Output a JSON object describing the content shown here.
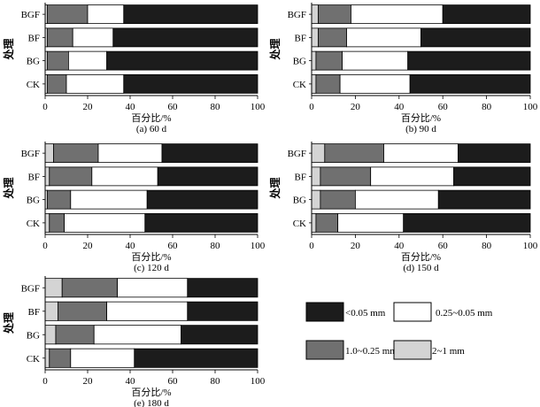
{
  "figure": {
    "ylabel": "处理",
    "xlabel": "百分比/%",
    "xlim": [
      0,
      100
    ],
    "xticks": [
      0,
      20,
      40,
      60,
      80,
      100
    ],
    "categories": [
      "BGF",
      "BF",
      "BG",
      "CK"
    ]
  },
  "legend": {
    "placement": "bottom-right",
    "items": [
      {
        "label": "<0.05 mm",
        "color": "#1c1c1c"
      },
      {
        "label": "0.25~0.05 mm",
        "color": "#ffffff"
      },
      {
        "label": "1.0~0.25 mm",
        "color": "#707070"
      },
      {
        "label": "2~1 mm",
        "color": "#d4d4d4"
      }
    ]
  },
  "chart_data": [
    {
      "type": "bar",
      "orientation": "horizontal",
      "stacked": true,
      "caption": "(a) 60 d",
      "categories": [
        "BGF",
        "BF",
        "BG",
        "CK"
      ],
      "xlim": [
        0,
        100
      ],
      "series": [
        {
          "name": "2~1 mm",
          "values": [
            1,
            1,
            1,
            1
          ]
        },
        {
          "name": "1.0~0.25 mm",
          "values": [
            19,
            12,
            10,
            9
          ]
        },
        {
          "name": "0.25~0.05 mm",
          "values": [
            17,
            19,
            18,
            27
          ]
        },
        {
          "name": "<0.05 mm",
          "values": [
            63,
            68,
            71,
            63
          ]
        }
      ]
    },
    {
      "type": "bar",
      "orientation": "horizontal",
      "stacked": true,
      "caption": "(b) 90 d",
      "categories": [
        "BGF",
        "BF",
        "BG",
        "CK"
      ],
      "xlim": [
        0,
        100
      ],
      "series": [
        {
          "name": "2~1 mm",
          "values": [
            3,
            3,
            2,
            2
          ]
        },
        {
          "name": "1.0~0.25 mm",
          "values": [
            15,
            13,
            12,
            11
          ]
        },
        {
          "name": "0.25~0.05 mm",
          "values": [
            42,
            34,
            30,
            32
          ]
        },
        {
          "name": "<0.05 mm",
          "values": [
            40,
            50,
            56,
            55
          ]
        }
      ]
    },
    {
      "type": "bar",
      "orientation": "horizontal",
      "stacked": true,
      "caption": "(c) 120 d",
      "categories": [
        "BGF",
        "BF",
        "BG",
        "CK"
      ],
      "xlim": [
        0,
        100
      ],
      "series": [
        {
          "name": "2~1 mm",
          "values": [
            4,
            2,
            1,
            2
          ]
        },
        {
          "name": "1.0~0.25 mm",
          "values": [
            21,
            20,
            11,
            7
          ]
        },
        {
          "name": "0.25~0.05 mm",
          "values": [
            30,
            31,
            36,
            38
          ]
        },
        {
          "name": "<0.05 mm",
          "values": [
            45,
            47,
            52,
            53
          ]
        }
      ]
    },
    {
      "type": "bar",
      "orientation": "horizontal",
      "stacked": true,
      "caption": "(d) 150 d",
      "categories": [
        "BGF",
        "BF",
        "BG",
        "CK"
      ],
      "xlim": [
        0,
        100
      ],
      "series": [
        {
          "name": "2~1 mm",
          "values": [
            6,
            4,
            4,
            2
          ]
        },
        {
          "name": "1.0~0.25 mm",
          "values": [
            27,
            23,
            16,
            10
          ]
        },
        {
          "name": "0.25~0.05 mm",
          "values": [
            34,
            38,
            38,
            30
          ]
        },
        {
          "name": "<0.05 mm",
          "values": [
            33,
            35,
            42,
            58
          ]
        }
      ]
    },
    {
      "type": "bar",
      "orientation": "horizontal",
      "stacked": true,
      "caption": "(e) 180 d",
      "categories": [
        "BGF",
        "BF",
        "BG",
        "CK"
      ],
      "xlim": [
        0,
        100
      ],
      "series": [
        {
          "name": "2~1 mm",
          "values": [
            8,
            6,
            5,
            2
          ]
        },
        {
          "name": "1.0~0.25 mm",
          "values": [
            26,
            23,
            18,
            10
          ]
        },
        {
          "name": "0.25~0.05 mm",
          "values": [
            33,
            38,
            41,
            30
          ]
        },
        {
          "name": "<0.05 mm",
          "values": [
            33,
            33,
            36,
            58
          ]
        }
      ]
    }
  ]
}
